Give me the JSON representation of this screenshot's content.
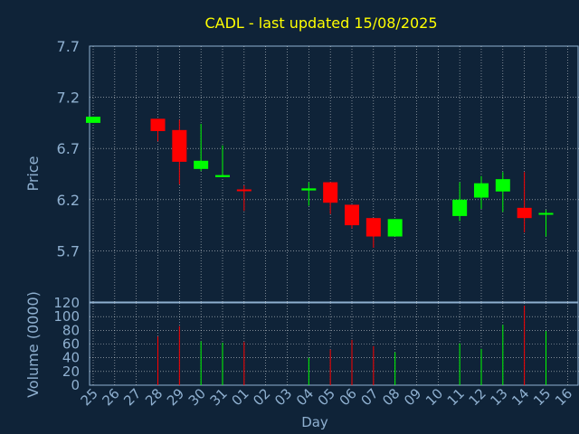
{
  "chart_data": {
    "type": "candlestick",
    "title": "CADL - last updated 15/08/2025",
    "xlabel": "Day",
    "price_ylabel": "Price",
    "volume_ylabel": "Volume (0000)",
    "x_ticks": [
      "25",
      "26",
      "27",
      "28",
      "29",
      "30",
      "31",
      "01",
      "02",
      "03",
      "04",
      "05",
      "06",
      "07",
      "08",
      "09",
      "10",
      "11",
      "12",
      "13",
      "14",
      "15",
      "16"
    ],
    "price_ticks": [
      "7.7",
      "7.2",
      "6.7",
      "6.2",
      "5.7"
    ],
    "volume_ticks": [
      "120",
      "100",
      "80",
      "60",
      "40",
      "20",
      "0"
    ],
    "price_ylim": [
      5.2,
      7.7
    ],
    "volume_ylim": [
      0,
      120
    ],
    "grid": true,
    "colors": {
      "background": "#0f2338",
      "title": "#ffff00",
      "text": "#8fb0d0",
      "grid": "#ffffff",
      "up": "#00ff00",
      "down": "#ff0000"
    },
    "candles": [
      {
        "day": "25",
        "open": 6.95,
        "high": 7.01,
        "low": 6.95,
        "close": 7.01,
        "volume": 0
      },
      {
        "day": "28",
        "open": 6.99,
        "high": 6.99,
        "low": 6.77,
        "close": 6.87,
        "volume": 71
      },
      {
        "day": "29",
        "open": 6.88,
        "high": 6.98,
        "low": 6.35,
        "close": 6.57,
        "volume": 86
      },
      {
        "day": "30",
        "open": 6.5,
        "high": 6.94,
        "low": 6.48,
        "close": 6.58,
        "volume": 64
      },
      {
        "day": "31",
        "open": 6.42,
        "high": 6.73,
        "low": 6.42,
        "close": 6.44,
        "volume": 62
      },
      {
        "day": "01",
        "open": 6.3,
        "high": 6.34,
        "low": 6.09,
        "close": 6.29,
        "volume": 63
      },
      {
        "day": "04",
        "open": 6.29,
        "high": 6.37,
        "low": 6.14,
        "close": 6.31,
        "volume": 40
      },
      {
        "day": "05",
        "open": 6.37,
        "high": 6.37,
        "low": 6.06,
        "close": 6.17,
        "volume": 52
      },
      {
        "day": "06",
        "open": 6.15,
        "high": 6.15,
        "low": 5.92,
        "close": 5.95,
        "volume": 66
      },
      {
        "day": "07",
        "open": 6.02,
        "high": 6.02,
        "low": 5.73,
        "close": 5.84,
        "volume": 57
      },
      {
        "day": "08",
        "open": 5.84,
        "high": 6.01,
        "low": 5.84,
        "close": 6.01,
        "volume": 48
      },
      {
        "day": "11",
        "open": 6.04,
        "high": 6.37,
        "low": 5.99,
        "close": 6.2,
        "volume": 61
      },
      {
        "day": "12",
        "open": 6.22,
        "high": 6.43,
        "low": 6.11,
        "close": 6.36,
        "volume": 53
      },
      {
        "day": "13",
        "open": 6.28,
        "high": 6.47,
        "low": 6.08,
        "close": 6.4,
        "volume": 88
      },
      {
        "day": "14",
        "open": 6.12,
        "high": 6.47,
        "low": 5.88,
        "close": 6.02,
        "volume": 116
      },
      {
        "day": "15",
        "open": 6.06,
        "high": 6.1,
        "low": 5.84,
        "close": 6.07,
        "volume": 79
      }
    ]
  }
}
